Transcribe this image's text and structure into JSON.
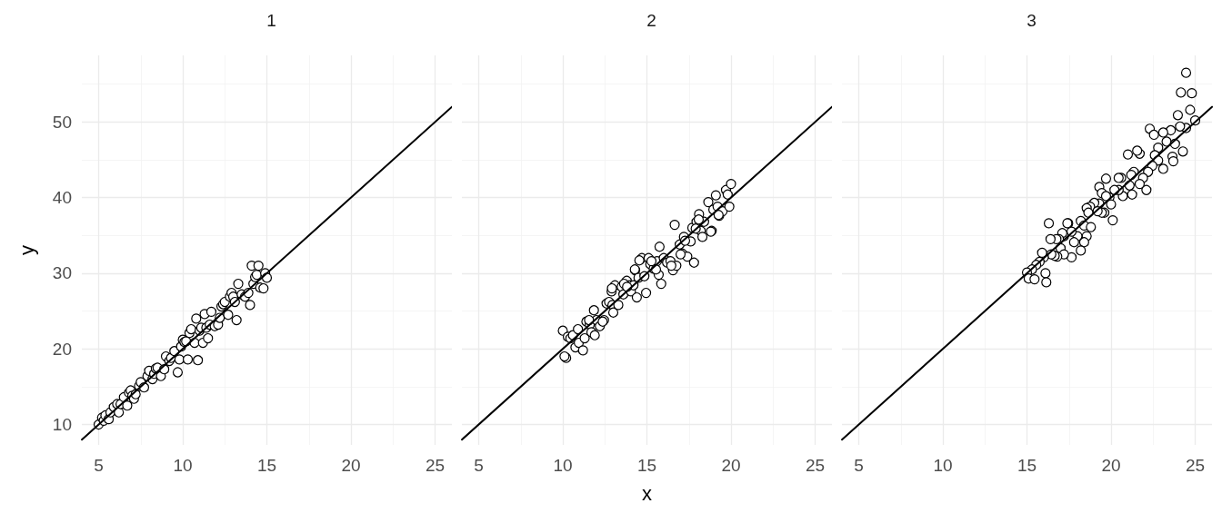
{
  "chart_data": [
    {
      "type": "scatter",
      "title": "1",
      "ylabel": "y",
      "xlim": [
        4,
        26
      ],
      "ylim": [
        7.3,
        58.8
      ],
      "xticks": [
        5,
        10,
        15,
        20,
        25
      ],
      "yticks": [
        10,
        20,
        30,
        40,
        50
      ],
      "grid": true,
      "marker": "circle",
      "line_style": "solid",
      "series": [
        {
          "color": "#000000",
          "x": [
            5,
            5.2,
            5.3,
            5.4,
            5.6,
            5.7,
            5.9,
            6.1,
            6.2,
            6.3,
            6.5,
            6.7,
            6.8,
            6.9,
            7.0,
            7.1,
            7.2,
            7.4,
            7.5,
            7.7,
            7.9,
            8.0,
            8.2,
            8.3,
            8.4,
            8.5,
            8.7,
            8.9,
            9.0,
            9.2,
            9.3,
            9.5,
            9.7,
            9.8,
            9.9,
            10.0,
            10.1,
            10.2,
            10.3,
            10.4,
            10.5,
            10.7,
            10.8,
            10.9,
            11.0,
            11.1,
            11.2,
            11.3,
            11.4,
            11.5,
            11.6,
            11.7,
            11.9,
            12.1,
            12.2,
            12.3,
            12.4,
            12.5,
            12.7,
            12.8,
            12.9,
            13.0,
            13.1,
            13.2,
            13.3,
            13.5,
            13.7,
            13.9,
            14.0,
            14.1,
            14.2,
            14.3,
            14.4,
            14.5,
            14.6,
            14.8,
            14.9,
            15.0
          ],
          "values": [
            10,
            10.9,
            10.5,
            11.2,
            10.7,
            11.6,
            12.3,
            12.7,
            11.6,
            12.7,
            13.6,
            12.5,
            14.2,
            14.5,
            13.8,
            13.4,
            14.0,
            15.1,
            15.6,
            14.9,
            16.4,
            17.1,
            16.0,
            16.7,
            17.4,
            17.5,
            16.4,
            17.3,
            19.0,
            18.4,
            18.8,
            19.7,
            16.9,
            18.6,
            20.3,
            21.2,
            20.9,
            21.0,
            18.6,
            22.1,
            22.6,
            20.8,
            24.0,
            18.5,
            22.4,
            22.8,
            20.8,
            24.6,
            22.8,
            21.4,
            23.2,
            24.9,
            23.0,
            23.2,
            24.1,
            25.6,
            25.9,
            26.2,
            24.5,
            26.9,
            27.4,
            26.9,
            26.2,
            23.8,
            28.6,
            27.2,
            26.9,
            27.4,
            25.8,
            31.0,
            28.6,
            29.5,
            29.8,
            31.0,
            28.1,
            28.0,
            30.0,
            29.4
          ]
        },
        {
          "type": "line",
          "marker": "none",
          "color": "#000000",
          "x": [
            4,
            26
          ],
          "values": [
            8,
            52
          ]
        }
      ]
    },
    {
      "type": "scatter",
      "title": "2",
      "xlabel": "x",
      "xlim": [
        4,
        26
      ],
      "ylim": [
        7.3,
        58.8
      ],
      "xticks": [
        5,
        10,
        15,
        20,
        25
      ],
      "yticks": [
        10,
        20,
        30,
        40,
        50
      ],
      "grid": true,
      "marker": "circle",
      "line_style": "solid",
      "tick_labels": "x",
      "series": [
        {
          "color": "#000000",
          "x": [
            10.0,
            10.2,
            10.1,
            10.3,
            10.45,
            10.6,
            10.75,
            10.9,
            10.95,
            11.2,
            11.3,
            11.4,
            11.6,
            11.7,
            11.85,
            11.9,
            12.0,
            12.2,
            12.45,
            12.6,
            12.75,
            12.95,
            13.0,
            12.9,
            13.1,
            13.3,
            13.5,
            13.6,
            13.8,
            13.95,
            14.05,
            14.2,
            14.3,
            14.4,
            14.5,
            14.7,
            14.85,
            14.95,
            15.1,
            15.2,
            15.4,
            15.6,
            15.7,
            15.75,
            15.85,
            16.0,
            16.2,
            16.4,
            16.55,
            16.65,
            16.75,
            16.95,
            17.1,
            17.2,
            17.4,
            17.6,
            17.7,
            17.8,
            17.95,
            18.1,
            18.2,
            18.3,
            18.4,
            18.65,
            18.85,
            18.95,
            19.1,
            19.2,
            19.3,
            19.5,
            19.7,
            19.8,
            19.9,
            20.0,
            11.56,
            12.37,
            12.92,
            13.64,
            13.82,
            14.28,
            14.55,
            15.27,
            15.54,
            16.45,
            17.0,
            17.27,
            17.9,
            18.08,
            18.8,
            19.26
          ],
          "values": [
            22.4,
            18.8,
            19.0,
            21.6,
            21.4,
            21.8,
            20.2,
            22.6,
            20.8,
            19.8,
            21.4,
            23.6,
            23.2,
            22.2,
            25.1,
            21.8,
            23.8,
            23.0,
            23.8,
            26.0,
            26.2,
            25.8,
            24.8,
            27.6,
            28.4,
            25.8,
            28.2,
            27.2,
            29.0,
            28.4,
            27.6,
            28.4,
            30.4,
            26.8,
            29.4,
            32.0,
            29.6,
            27.4,
            32.0,
            31.2,
            30.6,
            31.6,
            29.8,
            33.5,
            28.6,
            32.0,
            31.4,
            31.6,
            30.4,
            36.4,
            31.0,
            33.8,
            32.6,
            34.8,
            32.2,
            34.2,
            36.0,
            31.4,
            36.8,
            37.8,
            35.6,
            34.8,
            36.8,
            39.4,
            35.6,
            38.4,
            40.3,
            38.8,
            37.6,
            38.2,
            41.0,
            40.4,
            38.8,
            41.8,
            23.8,
            23.6,
            28.0,
            28.6,
            28.2,
            30.5,
            31.7,
            31.6,
            30.5,
            31.0,
            32.5,
            34.3,
            35.9,
            37.1,
            35.5,
            37.7
          ]
        },
        {
          "type": "line",
          "marker": "none",
          "color": "#000000",
          "x": [
            4,
            26
          ],
          "values": [
            8,
            52
          ]
        }
      ]
    },
    {
      "type": "scatter",
      "title": "3",
      "xlim": [
        4,
        26
      ],
      "ylim": [
        7.3,
        58.8
      ],
      "xticks": [
        5,
        10,
        15,
        20,
        25
      ],
      "yticks": [
        10,
        20,
        30,
        40,
        50
      ],
      "grid": true,
      "marker": "circle",
      "line_style": "solid",
      "tick_labels": "x",
      "series": [
        {
          "color": "#000000",
          "x": [
            24.46,
            24.15,
            24.8,
            24.7,
            23.97,
            25.0,
            24.46,
            24.1,
            23.55,
            22.3,
            22.55,
            23.1,
            23.3,
            23.8,
            22.8,
            24.27,
            23.65,
            23.7,
            22.6,
            22.8,
            23.1,
            22.45,
            21.0,
            21.7,
            21.55,
            22.2,
            21.9,
            22.1,
            21.7,
            21.35,
            21.2,
            20.6,
            20.45,
            21.1,
            21.25,
            20.7,
            20.45,
            20.2,
            19.7,
            19.3,
            19.45,
            19.9,
            20.0,
            19.7,
            19.6,
            20.1,
            19.3,
            19.0,
            18.75,
            18.55,
            18.65,
            19.45,
            19.2,
            18.2,
            18.4,
            18.8,
            18.55,
            18.4,
            18.2,
            18.0,
            17.8,
            17.65,
            17.45,
            17.4,
            17.2,
            17.1,
            17.0,
            16.9,
            16.75,
            16.4,
            16.3,
            17.65,
            17.2,
            16.8,
            16.65,
            16.45,
            16.0,
            15.9,
            15.75,
            15.55,
            15.3,
            15.0,
            15.1,
            15.45,
            16.1,
            16.15
          ],
          "values": [
            56.5,
            53.9,
            53.8,
            51.6,
            50.9,
            50.2,
            49.2,
            49.4,
            48.9,
            49.1,
            48.3,
            48.6,
            47.4,
            47.1,
            46.6,
            46.1,
            45.4,
            44.8,
            45.6,
            44.9,
            43.8,
            44.2,
            45.7,
            45.8,
            46.2,
            43.4,
            42.6,
            41.0,
            41.8,
            43.4,
            43.0,
            42.6,
            42.6,
            41.6,
            40.4,
            40.2,
            41.0,
            41.0,
            42.5,
            41.4,
            40.6,
            40.0,
            39.1,
            40.2,
            38.0,
            37.0,
            39.2,
            39.3,
            38.8,
            38.6,
            38.0,
            38.0,
            38.2,
            36.9,
            36.3,
            36.1,
            34.9,
            34.1,
            33.0,
            34.9,
            34.1,
            35.5,
            36.6,
            36.6,
            34.9,
            35.3,
            33.3,
            34.5,
            34.5,
            34.5,
            36.6,
            32.1,
            32.5,
            32.2,
            32.3,
            32.5,
            32.1,
            32.7,
            31.5,
            31.1,
            30.5,
            30.1,
            29.3,
            29.2,
            30.0,
            28.8
          ]
        },
        {
          "type": "line",
          "marker": "none",
          "color": "#000000",
          "x": [
            4,
            26
          ],
          "values": [
            8,
            52
          ]
        }
      ]
    }
  ]
}
